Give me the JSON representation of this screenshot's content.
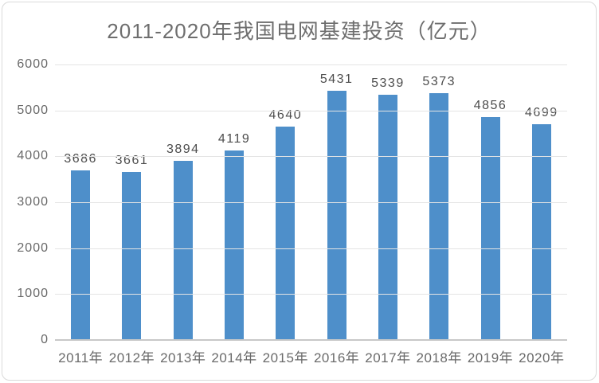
{
  "chart_data": {
    "type": "bar",
    "title": "2011-2020年我国电网基建投资（亿元）",
    "categories": [
      "2011年",
      "2012年",
      "2013年",
      "2014年",
      "2015年",
      "2016年",
      "2017年",
      "2018年",
      "2019年",
      "2020年"
    ],
    "values": [
      3686,
      3661,
      3894,
      4119,
      4640,
      5431,
      5339,
      5373,
      4856,
      4699
    ],
    "xlabel": "",
    "ylabel": "",
    "ylim": [
      0,
      6000
    ],
    "y_ticks": [
      0,
      1000,
      2000,
      3000,
      4000,
      5000,
      6000
    ],
    "grid": "horizontal",
    "legend": "none",
    "data_labels": true
  },
  "colors": {
    "bar": "#4e8fca",
    "title_text": "#6e6e6e",
    "axis_text": "#6a6a6a",
    "data_label_text": "#4c4c4c",
    "gridline": "#e4e4e4",
    "axis_line": "#c8c8c8",
    "card_border": "#dadada",
    "background": "#ffffff"
  }
}
